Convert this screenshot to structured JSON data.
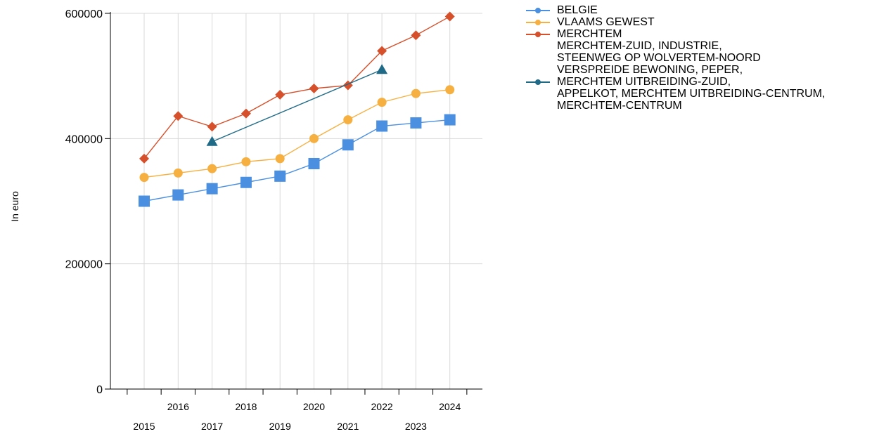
{
  "chart_data": {
    "type": "line",
    "ylabel": "In euro",
    "xlabel": "",
    "ylim": [
      0,
      600000
    ],
    "yticks": [
      "0",
      "200000",
      "400000",
      "600000"
    ],
    "x": [
      "2015",
      "2016",
      "2017",
      "2018",
      "2019",
      "2020",
      "2021",
      "2022",
      "2023",
      "2024"
    ],
    "grid": true,
    "legend_position": "right",
    "series": [
      {
        "name": "BELGIE",
        "label_lines": [
          "BELGIE"
        ],
        "color": "#4a8fe0",
        "marker": "square",
        "values": [
          300000,
          310000,
          320000,
          330000,
          340000,
          360000,
          390000,
          420000,
          425000,
          430000
        ]
      },
      {
        "name": "VLAAMS GEWEST",
        "label_lines": [
          "VLAAMS GEWEST"
        ],
        "color": "#f5b041",
        "marker": "circle",
        "values": [
          338000,
          345000,
          352000,
          363000,
          368000,
          400000,
          430000,
          458000,
          472000,
          478000
        ]
      },
      {
        "name": "MERCHTEM",
        "label_lines": [
          "MERCHTEM"
        ],
        "color": "#d5502b",
        "marker": "diamond",
        "values": [
          368000,
          436000,
          419000,
          440000,
          470000,
          480000,
          485000,
          540000,
          565000,
          595000
        ]
      },
      {
        "name": "MERCHTEM-ZUID, INDUSTRIE, STEENWEG OP WOLVERTEM-NOORD VERSPREIDE BEWONING, PEPER, MERCHTEM UITBREIDING-ZUID, APPELKOT, MERCHTEM UITBREIDING-CENTRUM, MERCHTEM-CENTRUM",
        "label_lines": [
          "MERCHTEM-ZUID, INDUSTRIE,",
          "STEENWEG OP WOLVERTEM-NOORD",
          "VERSPREIDE BEWONING, PEPER,",
          "MERCHTEM UITBREIDING-ZUID,",
          "APPELKOT, MERCHTEM UITBREIDING-CENTRUM,",
          "MERCHTEM-CENTRUM"
        ],
        "color": "#1f6a87",
        "marker": "triangle",
        "values": [
          null,
          null,
          395000,
          null,
          null,
          null,
          null,
          510000,
          null,
          null
        ]
      }
    ]
  }
}
